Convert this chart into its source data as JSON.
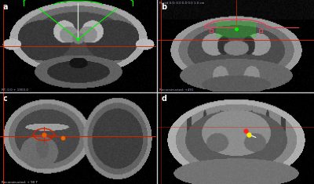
{
  "figure_bg": "#000000",
  "label_color": "#ffffff",
  "label_fontsize": 7,
  "green_color": "#00ee00",
  "red_color": "#dd2200",
  "dark_red": "#cc2200",
  "yellow_color": "#ffee00",
  "white_color": "#ffffff",
  "pink_color": "#dd4455",
  "orange_color": "#ee6600",
  "panel_a_bg": "#050505",
  "panel_b_bg": "#050505",
  "panel_c_bg": "#080808",
  "panel_d_bg": "#050505",
  "statusbar_a": "#2a2a3a",
  "statusbar_b": "#2a2a3a",
  "statusbar_c": "#3a3a3a",
  "statusbar_d": "#2a2a3a"
}
